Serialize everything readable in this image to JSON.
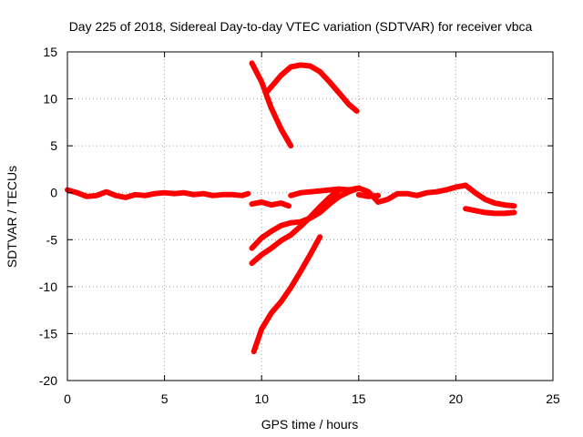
{
  "chart_data": {
    "type": "line",
    "title": "Day 225 of 2018, Sidereal Day-to-day VTEC variation (SDTVAR) for receiver vbca",
    "xlabel": "GPS time / hours",
    "ylabel": "SDTVAR / TECUs",
    "xlim": [
      0,
      25
    ],
    "ylim": [
      -20,
      15
    ],
    "xticks": [
      0,
      5,
      10,
      15,
      20,
      25
    ],
    "yticks": [
      -20,
      -15,
      -10,
      -5,
      0,
      5,
      10,
      15
    ],
    "xtick_labels": [
      "0",
      "5",
      "10",
      "15",
      "20",
      "25"
    ],
    "ytick_labels": [
      "-20",
      "-15",
      "-10",
      "-5",
      "0",
      "5",
      "10",
      "15"
    ],
    "grid": true,
    "color": "#ff0000",
    "series": [
      {
        "name": "s1",
        "x": [
          0,
          0.5,
          1,
          1.5,
          2,
          2.5,
          3,
          3.5,
          4,
          4.5,
          5,
          5.5,
          6,
          6.5,
          7,
          7.5,
          8,
          8.5,
          9,
          9.3
        ],
        "y": [
          0.3,
          0,
          -0.4,
          -0.3,
          0.1,
          -0.3,
          -0.5,
          -0.2,
          -0.3,
          -0.1,
          0,
          -0.1,
          0,
          -0.2,
          -0.1,
          -0.3,
          -0.2,
          -0.2,
          -0.3,
          -0.1
        ]
      },
      {
        "name": "s2",
        "x": [
          9.5,
          10,
          10.5,
          11,
          11.4
        ],
        "y": [
          -1.2,
          -1.0,
          -1.3,
          -1.1,
          -1.4
        ]
      },
      {
        "name": "s3",
        "x": [
          9.5,
          10,
          10.5,
          11,
          11.5
        ],
        "y": [
          13.8,
          11.8,
          9.0,
          6.8,
          5.0
        ]
      },
      {
        "name": "s4",
        "x": [
          10.3,
          11,
          11.5,
          12,
          12.5,
          13,
          13.5,
          14,
          14.5,
          14.9
        ],
        "y": [
          10.8,
          12.5,
          13.4,
          13.6,
          13.5,
          12.9,
          11.8,
          10.6,
          9.4,
          8.7
        ]
      },
      {
        "name": "s5",
        "x": [
          9.5,
          10,
          10.5,
          11,
          11.5,
          12,
          12.5,
          13,
          13.5,
          14,
          14.5,
          15
        ],
        "y": [
          -5.9,
          -4.8,
          -4.1,
          -3.5,
          -3.2,
          -3.1,
          -2.7,
          -2.1,
          -1.2,
          -0.4,
          0.1,
          0.5
        ]
      },
      {
        "name": "s6",
        "x": [
          9.5,
          10,
          10.5,
          11,
          11.5,
          12,
          12.5,
          13,
          13.5,
          14
        ],
        "y": [
          -7.5,
          -6.6,
          -5.9,
          -5.1,
          -4.5,
          -3.6,
          -2.6,
          -1.5,
          -0.5,
          0.3
        ]
      },
      {
        "name": "s7",
        "x": [
          9.6,
          10,
          10.5,
          11,
          11.5,
          12,
          12.5,
          13
        ],
        "y": [
          -16.9,
          -14.5,
          -12.8,
          -11.6,
          -10.1,
          -8.4,
          -6.6,
          -4.7
        ]
      },
      {
        "name": "s8",
        "x": [
          11.5,
          12,
          12.5,
          13,
          13.5,
          14,
          14.5,
          15,
          15.5,
          16,
          16.5,
          17,
          17.5,
          18,
          18.5,
          19,
          19.5,
          20,
          20.5,
          21,
          21.5,
          22,
          22.5,
          23
        ],
        "y": [
          -0.3,
          0,
          0.1,
          0.2,
          0.3,
          0.4,
          0.3,
          0.5,
          0.1,
          -1.0,
          -0.7,
          -0.1,
          -0.1,
          -0.3,
          0.0,
          0.1,
          0.3,
          0.6,
          0.8,
          0.0,
          -0.7,
          -1.1,
          -1.3,
          -1.4
        ]
      },
      {
        "name": "s9",
        "x": [
          20.5,
          21,
          21.5,
          22,
          22.5,
          23
        ],
        "y": [
          -1.7,
          -1.9,
          -2.1,
          -2.2,
          -2.2,
          -2.1
        ]
      },
      {
        "name": "s10",
        "x": [
          15,
          15.5,
          16
        ],
        "y": [
          -0.2,
          -0.4,
          -0.3
        ]
      }
    ]
  }
}
